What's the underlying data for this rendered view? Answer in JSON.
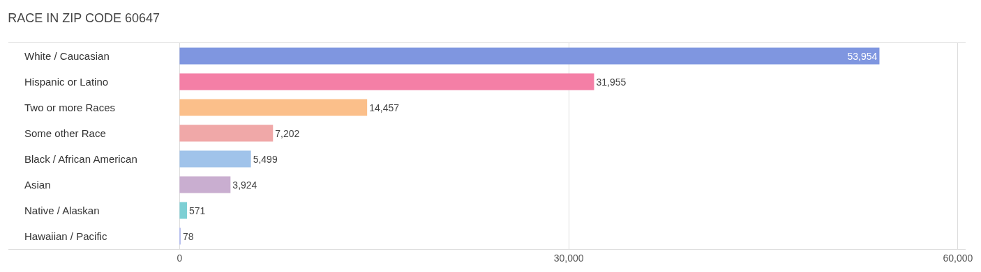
{
  "chart_data": {
    "type": "bar",
    "orientation": "horizontal",
    "title": "RACE IN ZIP CODE 60647",
    "categories": [
      "White / Caucasian",
      "Hispanic or Latino",
      "Two or more Races",
      "Some other Race",
      "Black / African American",
      "Asian",
      "Native / Alaskan",
      "Hawaiian / Pacific"
    ],
    "values": [
      53954,
      31955,
      14457,
      7202,
      5499,
      3924,
      571,
      78
    ],
    "colors": [
      "#7f96e0",
      "#f47fa6",
      "#fbbf8a",
      "#f0a8a8",
      "#a0c3ea",
      "#c9aed0",
      "#7dcfd4",
      "#b8c0ee"
    ],
    "xlim": [
      -13200,
      60600
    ],
    "xticks": [
      {
        "value": 0,
        "label": "0"
      },
      {
        "value": 30000,
        "label": "30,000"
      },
      {
        "value": 60000,
        "label": "60,000"
      }
    ],
    "value_labels": [
      "53,954",
      "31,955",
      "14,457",
      "7,202",
      "5,499",
      "3,924",
      "571",
      "78"
    ],
    "grid": "x",
    "legend": false
  }
}
